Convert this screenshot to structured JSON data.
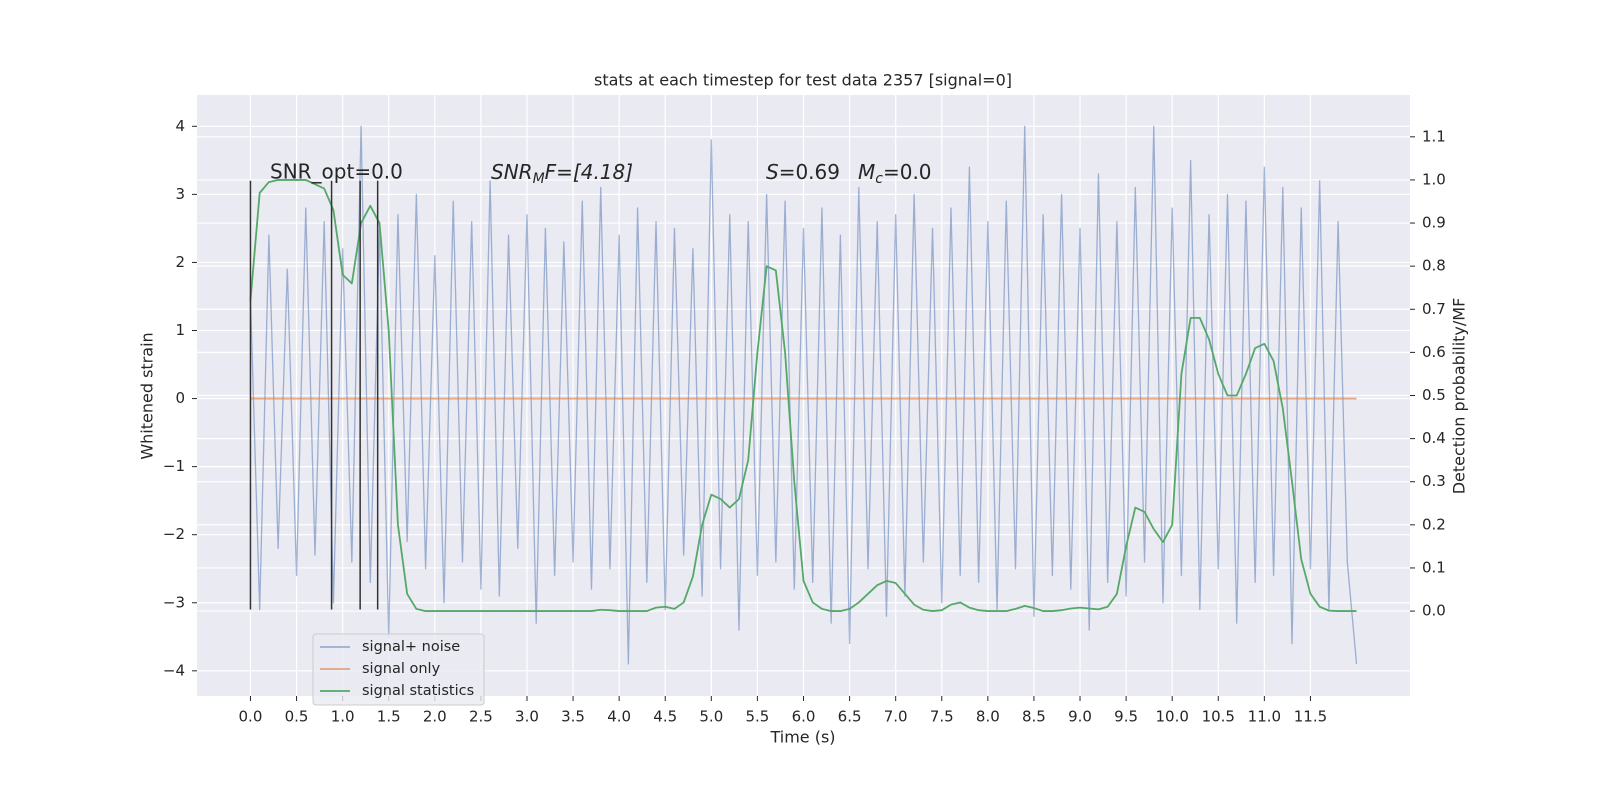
{
  "chart_data": {
    "type": "line",
    "title": "stats at each timestep for test data 2357 [signal=0]",
    "xlabel": "Time (s)",
    "ylabel": "Whitened strain",
    "y2label": "Detection probability/MF",
    "background": "#eaeaf2",
    "grid": true,
    "xlim": [
      -0.58,
      12.58
    ],
    "ylim": [
      -4.37,
      4.46
    ],
    "y2lim": [
      -0.197,
      1.197
    ],
    "xticks": [
      {
        "value": 0,
        "label": "0.0"
      },
      0.5,
      {
        "value": 1,
        "label": "1.0"
      },
      1.5,
      {
        "value": 2,
        "label": "2.0"
      },
      2.5,
      {
        "value": 3,
        "label": "3.0"
      },
      3.5,
      {
        "value": 4,
        "label": "4.0"
      },
      4.5,
      {
        "value": 5,
        "label": "5.0"
      },
      5.5,
      {
        "value": 6,
        "label": "6.0"
      },
      6.5,
      {
        "value": 7,
        "label": "7.0"
      },
      7.5,
      {
        "value": 8,
        "label": "8.0"
      },
      8.5,
      {
        "value": 9,
        "label": "9.0"
      },
      9.5,
      {
        "value": 10,
        "label": "10.0"
      },
      10.5,
      {
        "value": 11,
        "label": "11.0"
      },
      11.5
    ],
    "yticks": [
      {
        "value": -4,
        "label": "−4"
      },
      {
        "value": -3,
        "label": "−3"
      },
      {
        "value": -2,
        "label": "−2"
      },
      {
        "value": -1,
        "label": "−1"
      },
      0,
      1,
      2,
      3,
      4
    ],
    "y2ticks": [
      {
        "value": 0,
        "label": "0.0"
      },
      0.1,
      0.2,
      0.3,
      0.4,
      0.5,
      0.6,
      0.7,
      0.8,
      0.9,
      {
        "value": 1,
        "label": "1.0"
      },
      1.1
    ],
    "annotations": [
      "SNR_opt=0.0",
      {
        "base": "SNR",
        "sub": "M",
        "tail": "F=[4.18]"
      },
      {
        "base": "S",
        "tail": "=0.69"
      },
      {
        "base": "M",
        "sub": "c",
        "tail": "=0.0"
      }
    ],
    "vlines": {
      "x": [
        0,
        0.88,
        1.19,
        1.38
      ],
      "ymin": -3.1,
      "ymax": 3.2,
      "color": "#333333"
    },
    "x": [
      0,
      0.1,
      0.2,
      0.3,
      0.4,
      0.5,
      0.6,
      0.7,
      0.8,
      0.9,
      1,
      1.1,
      1.2,
      1.3,
      1.4,
      1.5,
      1.6,
      1.7,
      1.8,
      1.9,
      2,
      2.1,
      2.2,
      2.3,
      2.4,
      2.5,
      2.6,
      2.7,
      2.8,
      2.9,
      3,
      3.1,
      3.2,
      3.3,
      3.4,
      3.5,
      3.6,
      3.7,
      3.8,
      3.9,
      4,
      4.1,
      4.2,
      4.3,
      4.4,
      4.5,
      4.6,
      4.7,
      4.8,
      4.9,
      5,
      5.1,
      5.2,
      5.3,
      5.4,
      5.5,
      5.6,
      5.7,
      5.8,
      5.9,
      6,
      6.1,
      6.2,
      6.3,
      6.4,
      6.5,
      6.6,
      6.7,
      6.8,
      6.9,
      7,
      7.1,
      7.2,
      7.3,
      7.4,
      7.5,
      7.6,
      7.7,
      7.8,
      7.9,
      8,
      8.1,
      8.2,
      8.3,
      8.4,
      8.5,
      8.6,
      8.7,
      8.8,
      8.9,
      9,
      9.1,
      9.2,
      9.3,
      9.4,
      9.5,
      9.6,
      9.7,
      9.8,
      9.9,
      10,
      10.1,
      10.2,
      10.3,
      10.4,
      10.5,
      10.6,
      10.7,
      10.8,
      10.9,
      11,
      11.1,
      11.2,
      11.3,
      11.4,
      11.5,
      11.6,
      11.7,
      11.8,
      11.9,
      12
    ],
    "legend": "lower left",
    "series": [
      {
        "name": "signal+ noise",
        "color": "#4c72b0",
        "alpha": 0.5,
        "axis": "y",
        "values": [
          1.5,
          -3.1,
          2.4,
          -2.2,
          1.9,
          -2.6,
          2.8,
          -2.3,
          2.6,
          -3.0,
          2.2,
          -2.4,
          4.0,
          -2.7,
          2.5,
          -3.5,
          2.7,
          -2.1,
          3.0,
          -2.5,
          2.1,
          -3.0,
          2.9,
          -2.4,
          2.6,
          -2.8,
          3.2,
          -2.9,
          2.4,
          -2.2,
          2.7,
          -3.3,
          2.5,
          -2.6,
          2.3,
          -2.4,
          2.9,
          -2.8,
          3.1,
          -2.5,
          2.4,
          -3.9,
          2.8,
          -2.7,
          2.6,
          -3.1,
          2.5,
          -2.3,
          2.2,
          -2.9,
          3.8,
          -2.5,
          2.7,
          -3.4,
          2.6,
          -2.6,
          3.0,
          -2.4,
          2.9,
          -2.8,
          2.5,
          -2.7,
          2.8,
          -3.3,
          2.4,
          -3.6,
          3.1,
          -2.5,
          2.6,
          -3.2,
          2.7,
          -2.9,
          3.0,
          -2.4,
          2.5,
          -3.0,
          2.8,
          -2.6,
          3.4,
          -2.7,
          2.6,
          -3.1,
          2.9,
          -2.5,
          4.0,
          -3.2,
          2.7,
          -2.6,
          3.0,
          -2.8,
          2.5,
          -3.4,
          3.3,
          -2.7,
          2.6,
          -2.9,
          3.1,
          -2.4,
          4.0,
          -3.0,
          2.8,
          -2.6,
          3.5,
          -3.1,
          2.7,
          -2.5,
          3.0,
          -3.3,
          2.9,
          -2.7,
          3.4,
          -2.6,
          3.1,
          -3.6,
          2.8,
          -2.5,
          3.2,
          -3.1,
          2.6,
          -2.4,
          -3.9
        ]
      },
      {
        "name": "signal only",
        "color": "#dd8452",
        "alpha": 0.7,
        "axis": "y",
        "values": [
          0,
          0,
          0,
          0,
          0,
          0,
          0,
          0,
          0,
          0,
          0,
          0,
          0,
          0,
          0,
          0,
          0,
          0,
          0,
          0,
          0,
          0,
          0,
          0,
          0,
          0,
          0,
          0,
          0,
          0,
          0,
          0,
          0,
          0,
          0,
          0,
          0,
          0,
          0,
          0,
          0,
          0,
          0,
          0,
          0,
          0,
          0,
          0,
          0,
          0,
          0,
          0,
          0,
          0,
          0,
          0,
          0,
          0,
          0,
          0,
          0,
          0,
          0,
          0,
          0,
          0,
          0,
          0,
          0,
          0,
          0,
          0,
          0,
          0,
          0,
          0,
          0,
          0,
          0,
          0,
          0,
          0,
          0,
          0,
          0,
          0,
          0,
          0,
          0,
          0,
          0,
          0,
          0,
          0,
          0,
          0,
          0,
          0,
          0,
          0,
          0,
          0,
          0,
          0,
          0,
          0,
          0,
          0,
          0,
          0,
          0,
          0,
          0,
          0,
          0,
          0,
          0,
          0,
          0,
          0,
          0
        ]
      },
      {
        "name": "signal statistics",
        "color": "#55a868",
        "alpha": 1,
        "axis": "y2",
        "values": [
          0.72,
          0.97,
          0.995,
          1.0,
          1.0,
          1.0,
          1.0,
          0.99,
          0.98,
          0.93,
          0.78,
          0.76,
          0.9,
          0.94,
          0.9,
          0.65,
          0.2,
          0.04,
          0.005,
          0,
          0,
          0,
          0,
          0,
          0,
          0,
          0,
          0,
          0,
          0,
          0,
          0,
          0,
          0,
          0,
          0,
          0,
          0,
          0.003,
          0.002,
          0,
          0,
          0,
          0,
          0.008,
          0.01,
          0.005,
          0.02,
          0.08,
          0.2,
          0.27,
          0.26,
          0.24,
          0.26,
          0.35,
          0.6,
          0.8,
          0.79,
          0.6,
          0.3,
          0.07,
          0.02,
          0.005,
          0,
          0,
          0.005,
          0.02,
          0.04,
          0.06,
          0.07,
          0.065,
          0.04,
          0.015,
          0.003,
          0,
          0.002,
          0.015,
          0.02,
          0.008,
          0.002,
          0,
          0,
          0,
          0.005,
          0.012,
          0.007,
          0,
          0,
          0.002,
          0.006,
          0.008,
          0.006,
          0.004,
          0.01,
          0.04,
          0.15,
          0.24,
          0.23,
          0.19,
          0.16,
          0.2,
          0.55,
          0.68,
          0.68,
          0.63,
          0.55,
          0.5,
          0.5,
          0.55,
          0.61,
          0.62,
          0.58,
          0.47,
          0.3,
          0.12,
          0.04,
          0.01,
          0.001,
          0,
          0,
          0
        ]
      }
    ]
  }
}
